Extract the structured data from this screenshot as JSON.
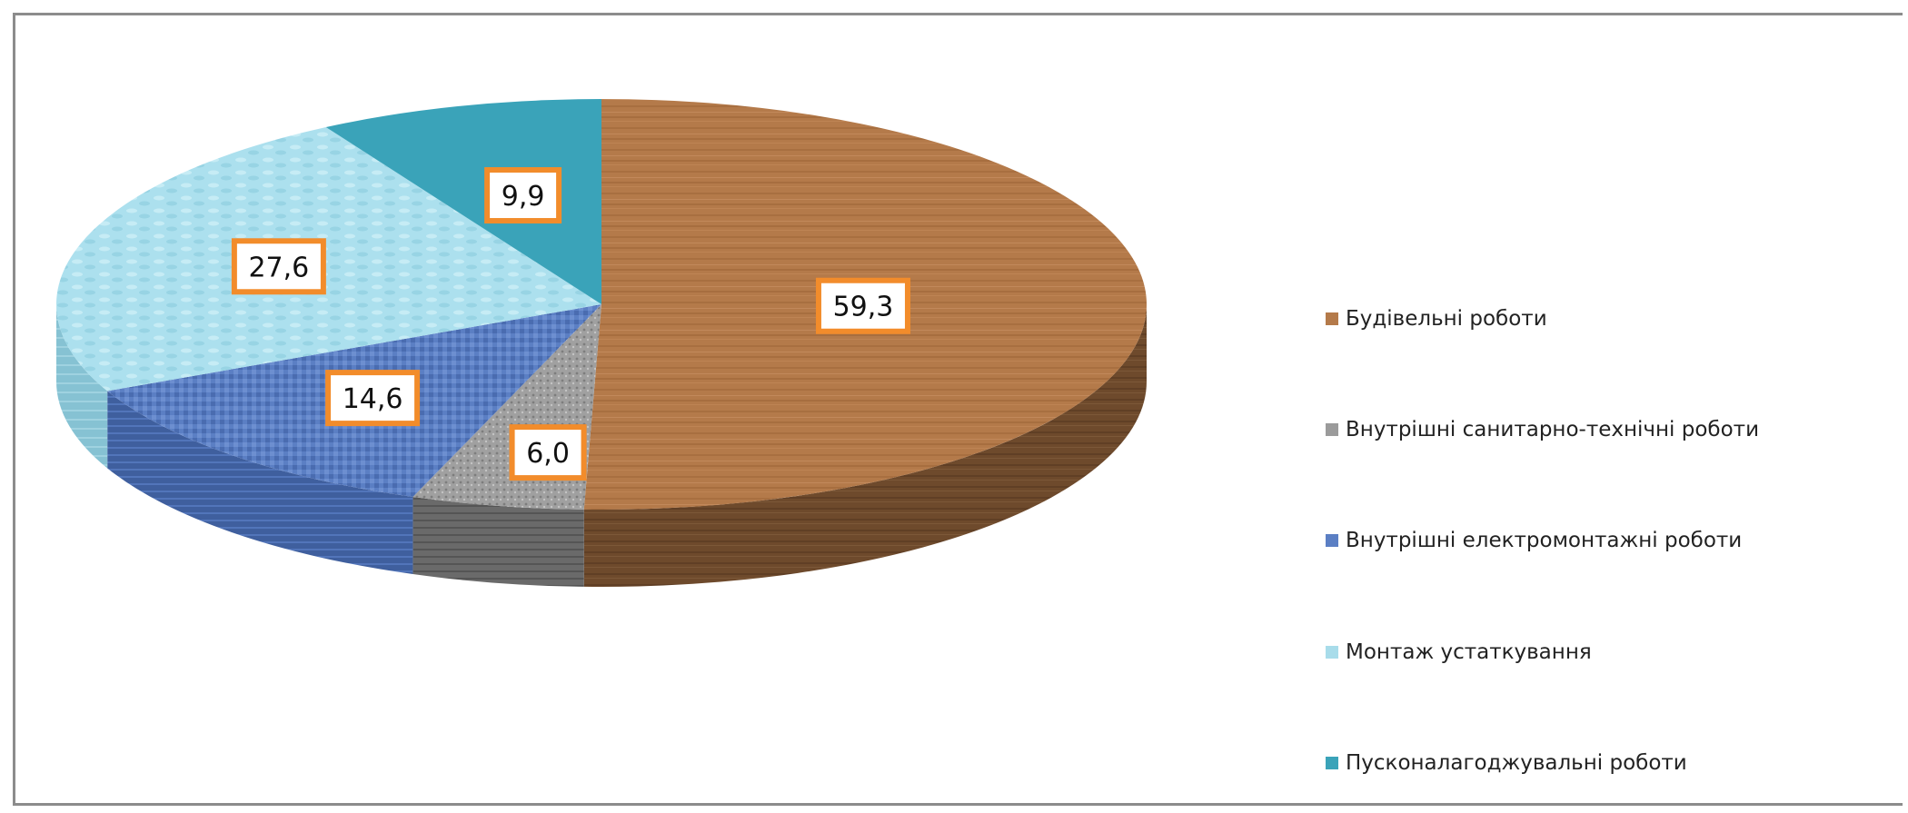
{
  "chart_data": {
    "type": "pie",
    "title": "",
    "categories": [
      "Будівельні роботи",
      "Внутрішні санитарно-технічні роботи",
      "Внутрішні електромонтажні роботи",
      "Монтаж  устаткування",
      "Пусконалагоджувальні роботи"
    ],
    "values": [
      59.3,
      6.0,
      14.6,
      27.6,
      9.9
    ],
    "labels": [
      "59,3",
      "6,0",
      "14,6",
      "27,6",
      "9,9"
    ],
    "legend_position": "right",
    "style": "3d",
    "colors": [
      "#b47a4a",
      "#9b9b9b",
      "#5b7fc4",
      "#a8dcea",
      "#3aa3b9"
    ],
    "label_border_color": "#f28c2b"
  }
}
